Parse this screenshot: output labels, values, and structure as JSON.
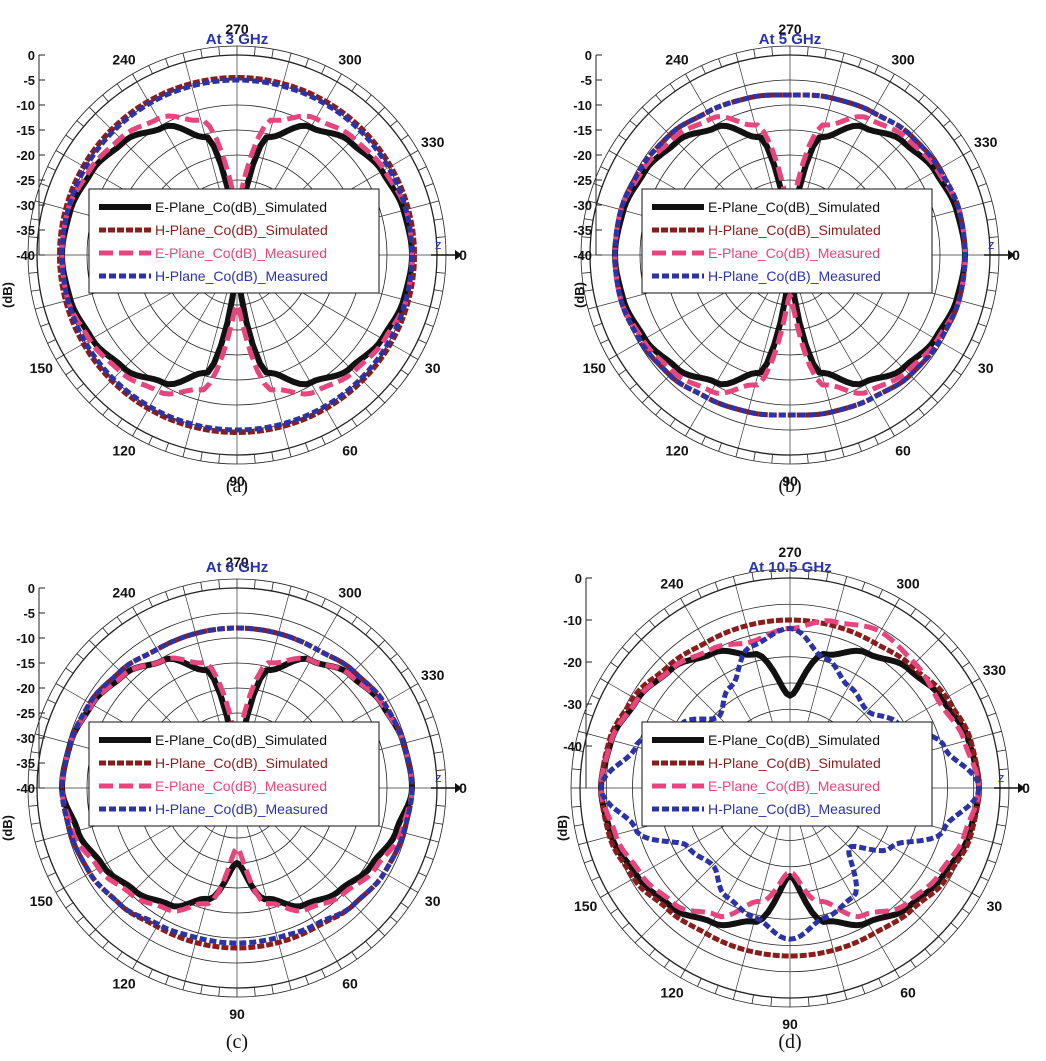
{
  "legend_labels": [
    "E-Plane_Co(dB)_Simulated",
    "H-Plane_Co(dB)_Simulated",
    "E-Plane_Co(dB)_Measured",
    "H-Plane_Co(dB)_Measured"
  ],
  "series_colors": [
    "#111111",
    "#8b1c1c",
    "#e8457e",
    "#2b33a6"
  ],
  "unit_label": "(dB)",
  "z_axis_label": "z",
  "chart_data": [
    {
      "type": "polar",
      "panel_label": "(a)",
      "title": "At 3 GHz",
      "angle_labels": [
        "270",
        "300",
        "330",
        "0",
        "30",
        "60",
        "90",
        "120",
        "150",
        "240"
      ],
      "radial_range": [
        -40,
        0
      ],
      "radial_ticks": [
        "0",
        "-5",
        "-10",
        "-15",
        "-20",
        "-25",
        "-30",
        "-35",
        "-40"
      ],
      "angles_deg": [
        0,
        15,
        30,
        45,
        60,
        75,
        90,
        105,
        120,
        135,
        150,
        165,
        180,
        195,
        210,
        225,
        240,
        255,
        270,
        285,
        300,
        315,
        330,
        345
      ],
      "series": [
        {
          "name": "E-Plane_Co(dB)_Simulated",
          "values": [
            -5,
            -5.5,
            -6.5,
            -8,
            -10.5,
            -15.5,
            -40,
            -15.5,
            -10.5,
            -8,
            -6.5,
            -5.5,
            -5,
            -5.5,
            -6.5,
            -8,
            -10.5,
            -15.5,
            -40,
            -15.5,
            -10.5,
            -8,
            -6.5,
            -5.5
          ]
        },
        {
          "name": "H-Plane_Co(dB)_Simulated",
          "values": [
            -4.5,
            -4.5,
            -4.5,
            -4.5,
            -4.5,
            -4.5,
            -4.5,
            -4.5,
            -4.5,
            -4.5,
            -4.5,
            -4.5,
            -4.5,
            -4.5,
            -4.5,
            -4.5,
            -4.5,
            -4.5,
            -4.5,
            -4.5,
            -4.5,
            -4.5,
            -4.5,
            -4.5
          ]
        },
        {
          "name": "E-Plane_Co(dB)_Measured",
          "values": [
            -5,
            -5,
            -6,
            -7,
            -8.5,
            -12,
            -30,
            -12,
            -8.5,
            -7,
            -6,
            -5,
            -5,
            -5,
            -6,
            -7,
            -8.5,
            -12,
            -30,
            -12,
            -8.5,
            -7,
            -6,
            -5
          ]
        },
        {
          "name": "H-Plane_Co(dB)_Measured",
          "values": [
            -5,
            -5,
            -5,
            -5,
            -5,
            -5,
            -5,
            -5,
            -5,
            -5,
            -5,
            -5,
            -5,
            -5,
            -5,
            -5,
            -5,
            -5,
            -5,
            -5,
            -5,
            -5,
            -5,
            -5
          ]
        }
      ]
    },
    {
      "type": "polar",
      "panel_label": "(b)",
      "title": "At 5 GHz",
      "angle_labels": [
        "270",
        "300",
        "330",
        "0",
        "30",
        "60",
        "90",
        "120",
        "150",
        "240"
      ],
      "radial_range": [
        -40,
        0
      ],
      "radial_ticks": [
        "0",
        "-5",
        "-10",
        "-15",
        "-20",
        "-25",
        "-30",
        "-35",
        "-40"
      ],
      "angles_deg": [
        0,
        15,
        30,
        45,
        60,
        75,
        90,
        105,
        120,
        135,
        150,
        165,
        180,
        195,
        210,
        225,
        240,
        255,
        270,
        285,
        300,
        315,
        330,
        345
      ],
      "series": [
        {
          "name": "E-Plane_Co(dB)_Simulated",
          "values": [
            -5,
            -5.5,
            -6.5,
            -8,
            -10.5,
            -15.5,
            -40,
            -15.5,
            -10.5,
            -8,
            -6.5,
            -5.5,
            -5,
            -5.5,
            -6.5,
            -8,
            -10.5,
            -15.5,
            -40,
            -15.5,
            -10.5,
            -8,
            -6.5,
            -5.5
          ]
        },
        {
          "name": "H-Plane_Co(dB)_Simulated",
          "values": [
            -5,
            -5,
            -5.5,
            -6,
            -7,
            -7.5,
            -8,
            -7.5,
            -7,
            -6,
            -5.5,
            -5,
            -5,
            -5,
            -5.5,
            -6,
            -7,
            -7.5,
            -8,
            -7.5,
            -7,
            -6,
            -5.5,
            -5
          ]
        },
        {
          "name": "E-Plane_Co(dB)_Measured",
          "values": [
            -5,
            -5,
            -6,
            -7,
            -8.5,
            -13,
            -32,
            -13,
            -8.5,
            -7,
            -6,
            -5,
            -5,
            -5,
            -6,
            -7,
            -8.5,
            -13,
            -32,
            -13,
            -8.5,
            -7,
            -6,
            -5
          ]
        },
        {
          "name": "H-Plane_Co(dB)_Measured",
          "values": [
            -5,
            -5,
            -5.5,
            -6,
            -7,
            -7.5,
            -8,
            -7.5,
            -7,
            -6,
            -5.5,
            -5,
            -5,
            -5,
            -5.5,
            -6,
            -7,
            -7.5,
            -8,
            -7.5,
            -7,
            -6,
            -5.5,
            -5
          ]
        }
      ]
    },
    {
      "type": "polar",
      "panel_label": "(c)",
      "title": "At 8 GHz",
      "angle_labels": [
        "270",
        "300",
        "330",
        "0",
        "30",
        "60",
        "90",
        "120",
        "150",
        "240"
      ],
      "radial_range": [
        -40,
        0
      ],
      "radial_ticks": [
        "0",
        "-5",
        "-10",
        "-15",
        "-20",
        "-25",
        "-30",
        "-35",
        "-40"
      ],
      "angles_deg": [
        0,
        15,
        30,
        45,
        60,
        75,
        90,
        105,
        120,
        135,
        150,
        165,
        180,
        195,
        210,
        225,
        240,
        255,
        270,
        285,
        300,
        315,
        330,
        345
      ],
      "series": [
        {
          "name": "E-Plane_Co(dB)_Simulated",
          "values": [
            -5,
            -7,
            -9,
            -11,
            -13,
            -17,
            -25,
            -17,
            -13,
            -11,
            -9,
            -7,
            -5,
            -5.5,
            -6.5,
            -8,
            -10.5,
            -15.5,
            -38,
            -15.5,
            -10.5,
            -8,
            -6.5,
            -5.5
          ]
        },
        {
          "name": "H-Plane_Co(dB)_Simulated",
          "values": [
            -5,
            -5.5,
            -6,
            -7,
            -8,
            -8,
            -8,
            -8,
            -8,
            -7,
            -6,
            -5.5,
            -5,
            -5.5,
            -6,
            -7,
            -8,
            -8,
            -8,
            -8,
            -8,
            -7,
            -6,
            -5.5
          ]
        },
        {
          "name": "E-Plane_Co(dB)_Measured",
          "values": [
            -5,
            -6,
            -8,
            -10,
            -12,
            -16,
            -28,
            -16,
            -12,
            -10,
            -8,
            -6,
            -5,
            -5.5,
            -6.5,
            -8,
            -10.5,
            -14,
            -30,
            -14,
            -10.5,
            -8,
            -6.5,
            -5.5
          ]
        },
        {
          "name": "H-Plane_Co(dB)_Measured",
          "values": [
            -5,
            -5.5,
            -6,
            -7,
            -8.5,
            -9,
            -9,
            -9,
            -8.5,
            -7,
            -6,
            -5.5,
            -5,
            -5.5,
            -6,
            -7,
            -8,
            -8,
            -8,
            -8,
            -8,
            -7,
            -6,
            -5.5
          ]
        }
      ]
    },
    {
      "type": "polar",
      "panel_label": "(d)",
      "title": "At 10.5 GHz",
      "angle_labels": [
        "270",
        "300",
        "330",
        "0",
        "30",
        "60",
        "90",
        "120",
        "150",
        "240"
      ],
      "radial_range": [
        -50,
        0
      ],
      "radial_ticks": [
        "0",
        "-10",
        "-20",
        "-30",
        "-40"
      ],
      "angles_deg": [
        0,
        15,
        30,
        45,
        60,
        75,
        90,
        105,
        120,
        135,
        150,
        165,
        180,
        195,
        210,
        225,
        240,
        255,
        270,
        285,
        300,
        315,
        330,
        345
      ],
      "series": [
        {
          "name": "E-Plane_Co(dB)_Simulated",
          "values": [
            -5,
            -6,
            -8,
            -10,
            -13,
            -17,
            -29,
            -17,
            -13,
            -10,
            -8,
            -6,
            -5,
            -6,
            -8,
            -10,
            -13,
            -17,
            -28,
            -17,
            -13,
            -10,
            -8,
            -6
          ]
        },
        {
          "name": "H-Plane_Co(dB)_Simulated",
          "values": [
            -5,
            -5.5,
            -7,
            -9,
            -10,
            -10,
            -10,
            -10,
            -10,
            -9,
            -7,
            -5.5,
            -5,
            -5.5,
            -7,
            -9,
            -10,
            -10,
            -10,
            -10,
            -10,
            -9,
            -7,
            -5.5
          ]
        },
        {
          "name": "E-Plane_Co(dB)_Measured",
          "values": [
            -5,
            -7,
            -9,
            -11,
            -15,
            -22,
            -30,
            -22,
            -15,
            -11,
            -9,
            -7,
            -5,
            -6,
            -8,
            -10,
            -12,
            -14,
            -12,
            -9,
            -7,
            -8,
            -9,
            -7
          ]
        },
        {
          "name": "H-Plane_Co(dB)_Measured",
          "values": [
            -5,
            -12,
            -22,
            -30,
            -20,
            -18,
            -14,
            -18,
            -20,
            -24,
            -22,
            -12,
            -5,
            -12,
            -20,
            -26,
            -22,
            -15,
            -12,
            -18,
            -22,
            -24,
            -20,
            -12
          ]
        }
      ]
    }
  ]
}
